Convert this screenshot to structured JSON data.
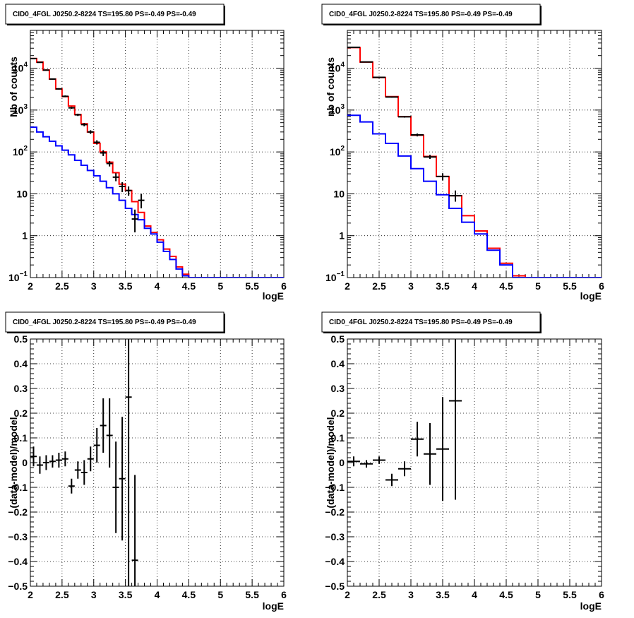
{
  "chart_data": [
    {
      "panel": "top-left",
      "type": "line",
      "title": "CID0_4FGL J0250.2-8224 TS=195.80 PS=-0.49 PS=-0.49",
      "xlabel": "logE",
      "ylabel": "Nb of counts",
      "xlim": [
        2,
        6
      ],
      "ylim": [
        0.1,
        80000
      ],
      "yscale": "log",
      "grid": true,
      "x_ticks": [
        "2",
        "2.5",
        "3",
        "3.5",
        "4",
        "4.5",
        "5",
        "5.5",
        "6"
      ],
      "y_ticks": [
        {
          "v": 0.1,
          "label": "10",
          "exp": "−1"
        },
        {
          "v": 1,
          "label": "1",
          "exp": ""
        },
        {
          "v": 10,
          "label": "10",
          "exp": ""
        },
        {
          "v": 100,
          "label": "10",
          "exp": "2"
        },
        {
          "v": 1000,
          "label": "10",
          "exp": "3"
        },
        {
          "v": 10000,
          "label": "10",
          "exp": "4"
        }
      ],
      "bin_edges": [
        2.0,
        2.1,
        2.2,
        2.3,
        2.4,
        2.5,
        2.6,
        2.7,
        2.8,
        2.9,
        3.0,
        3.1,
        3.2,
        3.3,
        3.4,
        3.5,
        3.6,
        3.7,
        3.8,
        3.9,
        4.0,
        4.1,
        4.2,
        4.3,
        4.4,
        4.5,
        4.6,
        4.7,
        4.8,
        4.9,
        5.0,
        5.1,
        5.2,
        5.3,
        5.4,
        5.5,
        5.6,
        5.7,
        5.8,
        5.9,
        6.0
      ],
      "series": [
        {
          "name": "",
          "color": "#ff0000",
          "kind": "step",
          "values": [
            17000,
            14000,
            9000,
            5500,
            3200,
            2100,
            1250,
            780,
            470,
            300,
            160,
            100,
            57,
            32,
            17,
            12,
            6.5,
            3.6,
            1.7,
            1.2,
            0.8,
            0.48,
            0.32,
            0.18,
            0.12,
            0.1,
            0.1,
            0.1,
            0.1,
            0.1,
            0.1,
            0.1,
            0.1,
            0.1,
            0.1,
            0.1,
            0.1,
            0.1,
            0.1,
            0.1
          ]
        },
        {
          "name": "",
          "color": "#0000ff",
          "kind": "step",
          "values": [
            390,
            300,
            230,
            180,
            140,
            110,
            85,
            63,
            48,
            36,
            27,
            20,
            14,
            10,
            7,
            4.5,
            3.2,
            2.4,
            1.5,
            1.1,
            0.7,
            0.42,
            0.27,
            0.16,
            0.11,
            0.1,
            0.1,
            0.1,
            0.1,
            0.1,
            0.1,
            0.1,
            0.1,
            0.1,
            0.1,
            0.1,
            0.1,
            0.1,
            0.1,
            0.1
          ]
        },
        {
          "name": "",
          "color": "#000000",
          "kind": "points",
          "points": [
            {
              "x": 2.05,
              "y": 17000,
              "lo": 16500,
              "hi": 17500
            },
            {
              "x": 2.15,
              "y": 13800,
              "lo": 13400,
              "hi": 14200
            },
            {
              "x": 2.25,
              "y": 9000,
              "lo": 8700,
              "hi": 9300
            },
            {
              "x": 2.35,
              "y": 5500,
              "lo": 5300,
              "hi": 5700
            },
            {
              "x": 2.45,
              "y": 3200,
              "lo": 3080,
              "hi": 3330
            },
            {
              "x": 2.55,
              "y": 2130,
              "lo": 2030,
              "hi": 2230
            },
            {
              "x": 2.65,
              "y": 1130,
              "lo": 1070,
              "hi": 1200
            },
            {
              "x": 2.75,
              "y": 770,
              "lo": 720,
              "hi": 820
            },
            {
              "x": 2.85,
              "y": 450,
              "lo": 410,
              "hi": 490
            },
            {
              "x": 2.95,
              "y": 300,
              "lo": 270,
              "hi": 330
            },
            {
              "x": 3.05,
              "y": 170,
              "lo": 150,
              "hi": 190
            },
            {
              "x": 3.15,
              "y": 95,
              "lo": 80,
              "hi": 110
            },
            {
              "x": 3.25,
              "y": 53,
              "lo": 45,
              "hi": 61
            },
            {
              "x": 3.35,
              "y": 25,
              "lo": 20,
              "hi": 31
            },
            {
              "x": 3.45,
              "y": 15,
              "lo": 11,
              "hi": 19
            },
            {
              "x": 3.55,
              "y": 12,
              "lo": 9,
              "hi": 15
            },
            {
              "x": 3.65,
              "y": 2.5,
              "lo": 1.2,
              "hi": 4.2
            },
            {
              "x": 3.75,
              "y": 7,
              "lo": 4.5,
              "hi": 10
            }
          ]
        }
      ]
    },
    {
      "panel": "top-right",
      "type": "line",
      "title": "CID0_4FGL J0250.2-8224 TS=195.80 PS=-0.49 PS=-0.49",
      "xlabel": "logE",
      "ylabel": "nb of counts",
      "xlim": [
        2,
        6
      ],
      "ylim": [
        0.1,
        80000
      ],
      "yscale": "log",
      "grid": true,
      "x_ticks": [
        "2",
        "2.5",
        "3",
        "3.5",
        "4",
        "4.5",
        "5",
        "5.5",
        "6"
      ],
      "y_ticks": [
        {
          "v": 0.1,
          "label": "10",
          "exp": "−1"
        },
        {
          "v": 1,
          "label": "1",
          "exp": ""
        },
        {
          "v": 10,
          "label": "10",
          "exp": ""
        },
        {
          "v": 100,
          "label": "10",
          "exp": "2"
        },
        {
          "v": 1000,
          "label": "10",
          "exp": "3"
        },
        {
          "v": 10000,
          "label": "10",
          "exp": "4"
        }
      ],
      "bin_edges": [
        2.0,
        2.2,
        2.4,
        2.6,
        2.8,
        3.0,
        3.2,
        3.4,
        3.6,
        3.8,
        4.0,
        4.2,
        4.4,
        4.6,
        4.8,
        5.0,
        5.2,
        5.4,
        5.6,
        5.8,
        6.0
      ],
      "series": [
        {
          "name": "",
          "color": "#ff0000",
          "kind": "step",
          "values": [
            31000,
            14000,
            6000,
            2100,
            700,
            250,
            78,
            26,
            9,
            3,
            1.3,
            0.5,
            0.22,
            0.11,
            0.1,
            0.1,
            0.1,
            0.1,
            0.1,
            0.1
          ]
        },
        {
          "name": "",
          "color": "#0000ff",
          "kind": "step",
          "values": [
            750,
            520,
            270,
            160,
            80,
            40,
            20,
            9.5,
            4.5,
            2.1,
            1.1,
            0.45,
            0.2,
            0.1,
            0.1,
            0.1,
            0.1,
            0.1,
            0.1,
            0.1
          ]
        },
        {
          "name": "",
          "color": "#000000",
          "kind": "points",
          "points": [
            {
              "x": 2.1,
              "y": 31500,
              "lo": 31000,
              "hi": 32000
            },
            {
              "x": 2.3,
              "y": 14100,
              "lo": 13800,
              "hi": 14400
            },
            {
              "x": 2.5,
              "y": 6050,
              "lo": 5900,
              "hi": 6200
            },
            {
              "x": 2.7,
              "y": 2050,
              "lo": 1980,
              "hi": 2120
            },
            {
              "x": 2.9,
              "y": 690,
              "lo": 660,
              "hi": 720
            },
            {
              "x": 3.1,
              "y": 255,
              "lo": 235,
              "hi": 275
            },
            {
              "x": 3.3,
              "y": 76,
              "lo": 68,
              "hi": 85
            },
            {
              "x": 3.5,
              "y": 26,
              "lo": 21,
              "hi": 31
            },
            {
              "x": 3.7,
              "y": 9,
              "lo": 6.5,
              "hi": 12
            }
          ]
        }
      ]
    },
    {
      "panel": "bottom-left",
      "type": "scatter",
      "title": "CID0_4FGL J0250.2-8224 TS=195.80 PS=-0.49 PS=-0.49",
      "xlabel": "logE",
      "ylabel": "(data-model)/model",
      "xlim": [
        2,
        6
      ],
      "ylim": [
        -0.5,
        0.5
      ],
      "yscale": "linear",
      "grid": true,
      "x_ticks": [
        "2",
        "2.5",
        "3",
        "3.5",
        "4",
        "4.5",
        "5",
        "5.5",
        "6"
      ],
      "y_ticks": [
        {
          "v": -0.5,
          "label": "−0.5"
        },
        {
          "v": -0.4,
          "label": "−0.4"
        },
        {
          "v": -0.3,
          "label": "−0.3"
        },
        {
          "v": -0.2,
          "label": "−0.2"
        },
        {
          "v": -0.1,
          "label": "−0.1"
        },
        {
          "v": 0,
          "label": "0"
        },
        {
          "v": 0.1,
          "label": "0.1"
        },
        {
          "v": 0.2,
          "label": "0.2"
        },
        {
          "v": 0.3,
          "label": "0.3"
        },
        {
          "v": 0.4,
          "label": "0.4"
        },
        {
          "v": 0.5,
          "label": "0.5"
        }
      ],
      "series": [
        {
          "name": "",
          "color": "#000000",
          "kind": "points",
          "halfwidth": 0.05,
          "points": [
            {
              "x": 2.05,
              "y": 0.025,
              "lo": -0.015,
              "hi": 0.065
            },
            {
              "x": 2.15,
              "y": -0.01,
              "lo": -0.045,
              "hi": 0.025
            },
            {
              "x": 2.25,
              "y": 0.0,
              "lo": -0.03,
              "hi": 0.03
            },
            {
              "x": 2.35,
              "y": 0.005,
              "lo": -0.02,
              "hi": 0.03
            },
            {
              "x": 2.45,
              "y": 0.01,
              "lo": -0.02,
              "hi": 0.04
            },
            {
              "x": 2.55,
              "y": 0.015,
              "lo": -0.015,
              "hi": 0.045
            },
            {
              "x": 2.65,
              "y": -0.095,
              "lo": -0.125,
              "hi": -0.065
            },
            {
              "x": 2.75,
              "y": -0.03,
              "lo": -0.065,
              "hi": 0.005
            },
            {
              "x": 2.85,
              "y": -0.04,
              "lo": -0.09,
              "hi": 0.01
            },
            {
              "x": 2.95,
              "y": 0.015,
              "lo": -0.035,
              "hi": 0.065
            },
            {
              "x": 3.05,
              "y": 0.07,
              "lo": 0.0,
              "hi": 0.14
            },
            {
              "x": 3.15,
              "y": 0.15,
              "lo": 0.04,
              "hi": 0.26
            },
            {
              "x": 3.25,
              "y": 0.11,
              "lo": -0.02,
              "hi": 0.26
            },
            {
              "x": 3.35,
              "y": -0.1,
              "lo": -0.285,
              "hi": 0.085
            },
            {
              "x": 3.45,
              "y": -0.065,
              "lo": -0.315,
              "hi": 0.185
            },
            {
              "x": 3.55,
              "y": 0.265,
              "lo": -0.5,
              "hi": 0.5
            },
            {
              "x": 3.65,
              "y": -0.395,
              "lo": -0.5,
              "hi": -0.05
            }
          ]
        }
      ]
    },
    {
      "panel": "bottom-right",
      "type": "scatter",
      "title": "CID0_4FGL J0250.2-8224 TS=195.80 PS=-0.49 PS=-0.49",
      "xlabel": "logE",
      "ylabel": "(data-model)/model",
      "xlim": [
        2,
        6
      ],
      "ylim": [
        -0.5,
        0.5
      ],
      "yscale": "linear",
      "grid": true,
      "x_ticks": [
        "2",
        "2.5",
        "3",
        "3.5",
        "4",
        "4.5",
        "5",
        "5.5",
        "6"
      ],
      "y_ticks": [
        {
          "v": -0.5,
          "label": "−0.5"
        },
        {
          "v": -0.4,
          "label": "−0.4"
        },
        {
          "v": -0.3,
          "label": "−0.3"
        },
        {
          "v": -0.2,
          "label": "−0.2"
        },
        {
          "v": -0.1,
          "label": "−0.1"
        },
        {
          "v": 0,
          "label": "0"
        },
        {
          "v": 0.1,
          "label": "0.1"
        },
        {
          "v": 0.2,
          "label": "0.2"
        },
        {
          "v": 0.3,
          "label": "0.3"
        },
        {
          "v": 0.4,
          "label": "0.4"
        },
        {
          "v": 0.5,
          "label": "0.5"
        }
      ],
      "series": [
        {
          "name": "",
          "color": "#000000",
          "kind": "points",
          "halfwidth": 0.1,
          "points": [
            {
              "x": 2.1,
              "y": 0.005,
              "lo": -0.015,
              "hi": 0.025
            },
            {
              "x": 2.3,
              "y": -0.005,
              "lo": -0.02,
              "hi": 0.01
            },
            {
              "x": 2.5,
              "y": 0.01,
              "lo": -0.005,
              "hi": 0.025
            },
            {
              "x": 2.7,
              "y": -0.07,
              "lo": -0.095,
              "hi": -0.045
            },
            {
              "x": 2.9,
              "y": -0.025,
              "lo": -0.055,
              "hi": 0.005
            },
            {
              "x": 3.1,
              "y": 0.095,
              "lo": 0.025,
              "hi": 0.165
            },
            {
              "x": 3.3,
              "y": 0.035,
              "lo": -0.09,
              "hi": 0.16
            },
            {
              "x": 3.5,
              "y": 0.055,
              "lo": -0.155,
              "hi": 0.265
            },
            {
              "x": 3.7,
              "y": 0.25,
              "lo": -0.15,
              "hi": 0.5
            }
          ]
        }
      ]
    }
  ]
}
